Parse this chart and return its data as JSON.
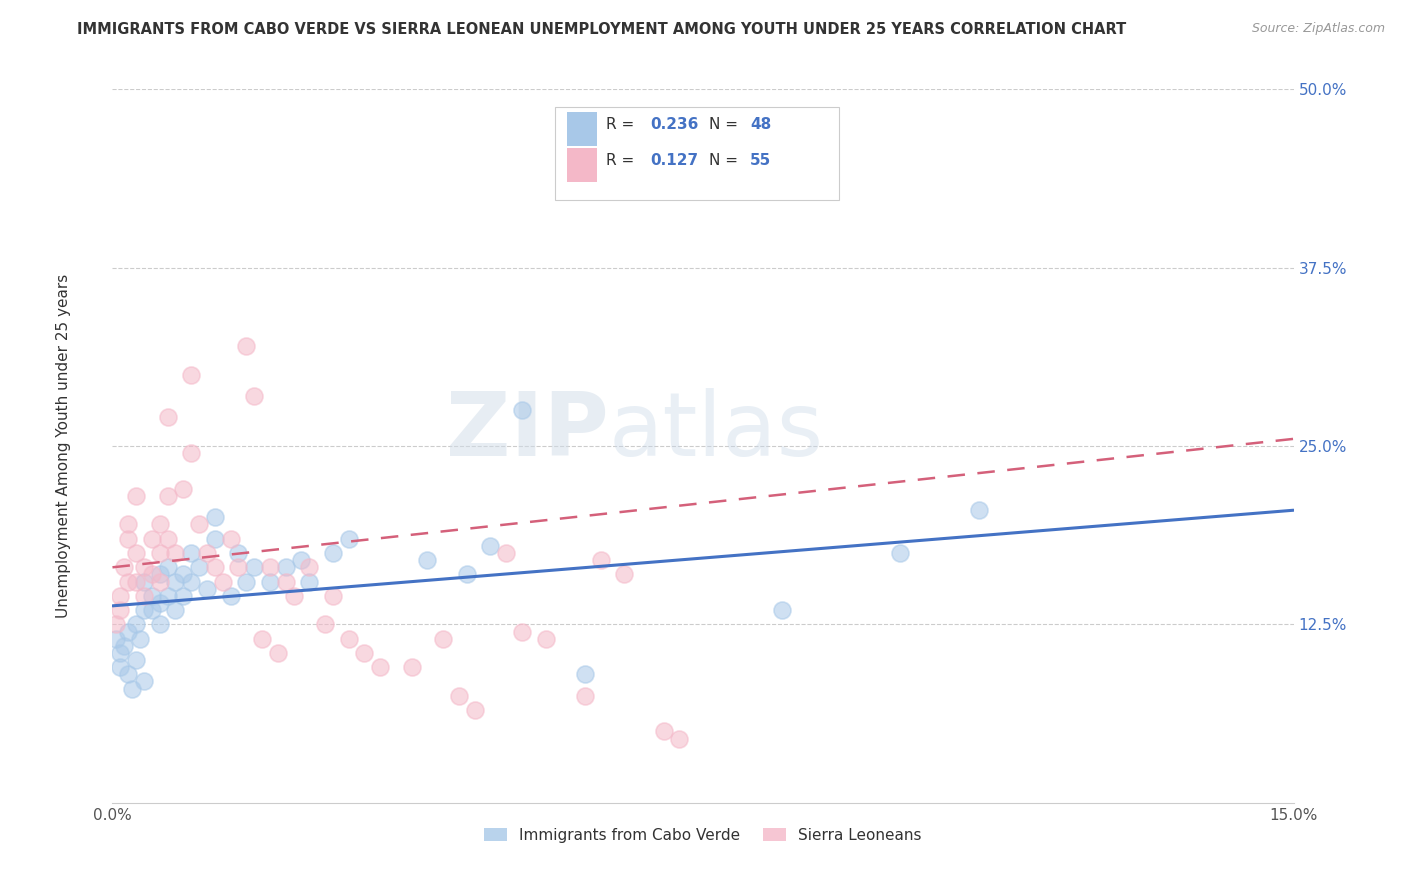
{
  "title": "IMMIGRANTS FROM CABO VERDE VS SIERRA LEONEAN UNEMPLOYMENT AMONG YOUTH UNDER 25 YEARS CORRELATION CHART",
  "source": "Source: ZipAtlas.com",
  "ylabel": "Unemployment Among Youth under 25 years",
  "x_min": 0.0,
  "x_max": 0.15,
  "y_min": 0.0,
  "y_max": 0.5,
  "color_blue": "#a8c8e8",
  "color_pink": "#f4b8c8",
  "line_blue": "#4472c4",
  "line_pink": "#d4607a",
  "watermark_zip": "ZIP",
  "watermark_atlas": "atlas",
  "legend_r1": "R = ",
  "legend_v1": "0.236",
  "legend_n1_label": "N = ",
  "legend_n1_val": "48",
  "legend_r2": "R = ",
  "legend_v2": "0.127",
  "legend_n2_label": "N = ",
  "legend_n2_val": "55",
  "cabo_verde_points": [
    [
      0.0005,
      0.115
    ],
    [
      0.001,
      0.095
    ],
    [
      0.001,
      0.105
    ],
    [
      0.0015,
      0.11
    ],
    [
      0.002,
      0.09
    ],
    [
      0.002,
      0.12
    ],
    [
      0.0025,
      0.08
    ],
    [
      0.003,
      0.1
    ],
    [
      0.003,
      0.125
    ],
    [
      0.0035,
      0.115
    ],
    [
      0.004,
      0.085
    ],
    [
      0.004,
      0.135
    ],
    [
      0.004,
      0.155
    ],
    [
      0.005,
      0.145
    ],
    [
      0.005,
      0.135
    ],
    [
      0.006,
      0.16
    ],
    [
      0.006,
      0.14
    ],
    [
      0.006,
      0.125
    ],
    [
      0.007,
      0.165
    ],
    [
      0.007,
      0.145
    ],
    [
      0.008,
      0.155
    ],
    [
      0.008,
      0.135
    ],
    [
      0.009,
      0.16
    ],
    [
      0.009,
      0.145
    ],
    [
      0.01,
      0.155
    ],
    [
      0.01,
      0.175
    ],
    [
      0.011,
      0.165
    ],
    [
      0.012,
      0.15
    ],
    [
      0.013,
      0.2
    ],
    [
      0.013,
      0.185
    ],
    [
      0.015,
      0.145
    ],
    [
      0.016,
      0.175
    ],
    [
      0.017,
      0.155
    ],
    [
      0.018,
      0.165
    ],
    [
      0.02,
      0.155
    ],
    [
      0.022,
      0.165
    ],
    [
      0.024,
      0.17
    ],
    [
      0.025,
      0.155
    ],
    [
      0.028,
      0.175
    ],
    [
      0.03,
      0.185
    ],
    [
      0.04,
      0.17
    ],
    [
      0.048,
      0.18
    ],
    [
      0.052,
      0.275
    ],
    [
      0.06,
      0.09
    ],
    [
      0.085,
      0.135
    ],
    [
      0.1,
      0.175
    ],
    [
      0.11,
      0.205
    ],
    [
      0.045,
      0.16
    ]
  ],
  "sierra_leone_points": [
    [
      0.0005,
      0.125
    ],
    [
      0.001,
      0.135
    ],
    [
      0.001,
      0.145
    ],
    [
      0.0015,
      0.165
    ],
    [
      0.002,
      0.185
    ],
    [
      0.002,
      0.155
    ],
    [
      0.002,
      0.195
    ],
    [
      0.003,
      0.175
    ],
    [
      0.003,
      0.155
    ],
    [
      0.003,
      0.215
    ],
    [
      0.004,
      0.165
    ],
    [
      0.004,
      0.145
    ],
    [
      0.005,
      0.185
    ],
    [
      0.005,
      0.16
    ],
    [
      0.006,
      0.195
    ],
    [
      0.006,
      0.175
    ],
    [
      0.006,
      0.155
    ],
    [
      0.007,
      0.27
    ],
    [
      0.007,
      0.215
    ],
    [
      0.007,
      0.185
    ],
    [
      0.008,
      0.175
    ],
    [
      0.009,
      0.22
    ],
    [
      0.01,
      0.3
    ],
    [
      0.01,
      0.245
    ],
    [
      0.011,
      0.195
    ],
    [
      0.012,
      0.175
    ],
    [
      0.013,
      0.165
    ],
    [
      0.014,
      0.155
    ],
    [
      0.015,
      0.185
    ],
    [
      0.016,
      0.165
    ],
    [
      0.017,
      0.32
    ],
    [
      0.018,
      0.285
    ],
    [
      0.019,
      0.115
    ],
    [
      0.02,
      0.165
    ],
    [
      0.021,
      0.105
    ],
    [
      0.022,
      0.155
    ],
    [
      0.023,
      0.145
    ],
    [
      0.025,
      0.165
    ],
    [
      0.027,
      0.125
    ],
    [
      0.028,
      0.145
    ],
    [
      0.03,
      0.115
    ],
    [
      0.032,
      0.105
    ],
    [
      0.034,
      0.095
    ],
    [
      0.038,
      0.095
    ],
    [
      0.042,
      0.115
    ],
    [
      0.044,
      0.075
    ],
    [
      0.046,
      0.065
    ],
    [
      0.05,
      0.175
    ],
    [
      0.052,
      0.12
    ],
    [
      0.055,
      0.115
    ],
    [
      0.06,
      0.075
    ],
    [
      0.062,
      0.17
    ],
    [
      0.065,
      0.16
    ],
    [
      0.07,
      0.05
    ],
    [
      0.072,
      0.045
    ]
  ]
}
